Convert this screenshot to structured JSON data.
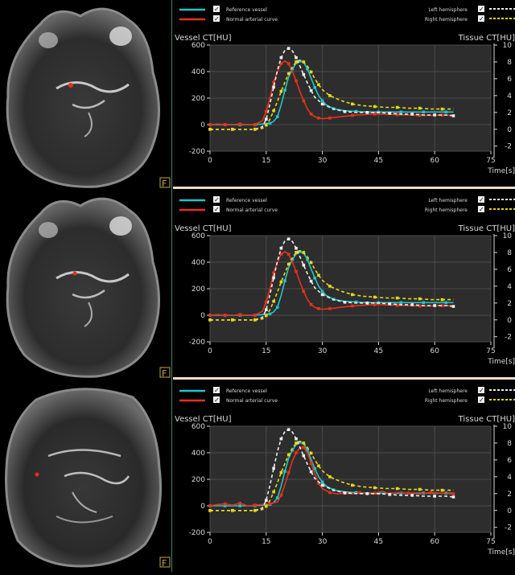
{
  "colors": {
    "reference": "#22c4c8",
    "normal_arterial": "#e8301e",
    "left_hemisphere": "#eeeeee",
    "right_hemisphere": "#e8d81c",
    "plot_bg": "#2d2d2d",
    "grid": "#4a4a4a",
    "text": "#d8d8d8"
  },
  "left_panel": {
    "frame_marker": "F"
  },
  "legend": {
    "reference_vessel": "Reference vessel",
    "normal_arterial_curve": "Normal arterial curve",
    "left_hemisphere": "Left hemisphere",
    "right_hemisphere": "Right hemisphere"
  },
  "chart_data": [
    {
      "type": "line",
      "y_left_label": "Vessel CT[HU]",
      "y_right_label": "Tissue CT[HU]",
      "x_label": "Time[s]",
      "x_ticks": [
        0,
        15,
        30,
        45,
        60,
        75
      ],
      "y_left_ticks": [
        600,
        400,
        200,
        0,
        -200
      ],
      "y_right_ticks": [
        10,
        8,
        6,
        4,
        2,
        0,
        -2
      ],
      "xlim": [
        0,
        75
      ],
      "ylim_left": [
        -200,
        600
      ],
      "ylim_right": [
        -2.6,
        10
      ],
      "series": [
        {
          "name": "Reference vessel",
          "axis": "left",
          "x": [
            0,
            2,
            4,
            6,
            8,
            10,
            12,
            14,
            16,
            17,
            18,
            19,
            20,
            21,
            22,
            23,
            24,
            25,
            26,
            27,
            28,
            29,
            30,
            31,
            33,
            36,
            39,
            42,
            45,
            48,
            51,
            54,
            57,
            60,
            63,
            65
          ],
          "y": [
            0,
            0,
            0,
            0,
            0,
            0,
            0,
            5,
            10,
            25,
            60,
            150,
            260,
            360,
            420,
            460,
            480,
            470,
            420,
            350,
            280,
            220,
            180,
            150,
            120,
            105,
            100,
            95,
            95,
            95,
            95,
            95,
            95,
            95,
            95,
            95
          ]
        },
        {
          "name": "Normal arterial curve",
          "axis": "left",
          "x": [
            0,
            2,
            4,
            6,
            8,
            10,
            12,
            14,
            15,
            16,
            17,
            18,
            19,
            20,
            21,
            22,
            23,
            24,
            25,
            26,
            27,
            28,
            29,
            30,
            32,
            35,
            38,
            41,
            44,
            47,
            50,
            53,
            56,
            59,
            62,
            65
          ],
          "y": [
            0,
            5,
            0,
            0,
            5,
            0,
            0,
            30,
            100,
            200,
            320,
            400,
            460,
            480,
            460,
            400,
            330,
            250,
            180,
            120,
            80,
            60,
            50,
            45,
            50,
            60,
            70,
            75,
            80,
            78,
            75,
            72,
            70,
            70,
            72,
            70
          ]
        },
        {
          "name": "Left hemisphere",
          "axis": "right",
          "x": [
            0,
            3,
            6,
            9,
            12,
            14,
            15,
            16,
            17,
            18,
            19,
            20,
            21,
            22,
            23,
            24,
            25,
            26,
            27,
            28,
            30,
            33,
            36,
            39,
            42,
            45,
            48,
            51,
            54,
            57,
            60,
            63,
            65
          ],
          "y": [
            0,
            0,
            0,
            0,
            0,
            0.3,
            1.2,
            3,
            5,
            7,
            8.5,
            9.4,
            9.6,
            9.3,
            8.5,
            7.5,
            6.5,
            5.5,
            4.6,
            3.8,
            3,
            2.4,
            2.1,
            2,
            2,
            2,
            1.9,
            1.8,
            1.8,
            1.7,
            1.7,
            1.7,
            1.6
          ]
        },
        {
          "name": "Right hemisphere",
          "axis": "right",
          "x": [
            0,
            3,
            6,
            9,
            12,
            14,
            15,
            16,
            17,
            18,
            19,
            20,
            21,
            22,
            23,
            24,
            25,
            26,
            27,
            28,
            29,
            30,
            32,
            35,
            38,
            41,
            44,
            47,
            50,
            53,
            56,
            59,
            62,
            65
          ],
          "y": [
            0,
            0,
            0,
            0,
            0,
            0.1,
            0.5,
            1.2,
            2.2,
            3.3,
            4.5,
            5.6,
            6.6,
            7.4,
            8,
            8.2,
            8,
            7.5,
            6.8,
            6,
            5.3,
            4.7,
            4,
            3.4,
            3,
            2.8,
            2.7,
            2.6,
            2.6,
            2.5,
            2.5,
            2.4,
            2.4,
            2.4
          ]
        }
      ]
    },
    {
      "type": "line",
      "y_left_label": "Vessel CT[HU]",
      "y_right_label": "Tissue CT[HU]",
      "x_label": "Time[s]",
      "x_ticks": [
        0,
        15,
        30,
        45,
        60,
        75
      ],
      "y_left_ticks": [
        600,
        400,
        200,
        0,
        -200
      ],
      "y_right_ticks": [
        10,
        8,
        6,
        4,
        2,
        0,
        -2
      ],
      "xlim": [
        0,
        75
      ],
      "ylim_left": [
        -200,
        600
      ],
      "ylim_right": [
        -2.6,
        10
      ],
      "series": [
        {
          "name": "Reference vessel",
          "axis": "left",
          "x": [
            0,
            2,
            4,
            6,
            8,
            10,
            12,
            14,
            16,
            17,
            18,
            19,
            20,
            21,
            22,
            23,
            24,
            25,
            26,
            27,
            28,
            29,
            30,
            31,
            33,
            36,
            39,
            42,
            45,
            48,
            51,
            54,
            57,
            60,
            63,
            65
          ],
          "y": [
            0,
            0,
            0,
            0,
            0,
            0,
            0,
            5,
            10,
            25,
            60,
            150,
            260,
            360,
            420,
            460,
            480,
            470,
            420,
            350,
            280,
            220,
            180,
            150,
            120,
            105,
            100,
            95,
            95,
            95,
            95,
            95,
            95,
            95,
            95,
            95
          ]
        },
        {
          "name": "Normal arterial curve",
          "axis": "left",
          "x": [
            0,
            2,
            4,
            6,
            8,
            10,
            12,
            14,
            15,
            16,
            17,
            18,
            19,
            20,
            21,
            22,
            23,
            24,
            25,
            26,
            27,
            28,
            29,
            30,
            32,
            35,
            38,
            41,
            44,
            47,
            50,
            53,
            56,
            59,
            62,
            65
          ],
          "y": [
            0,
            5,
            0,
            0,
            5,
            0,
            0,
            30,
            100,
            200,
            320,
            400,
            460,
            480,
            460,
            400,
            330,
            250,
            180,
            120,
            80,
            60,
            50,
            45,
            50,
            60,
            70,
            75,
            80,
            78,
            75,
            72,
            70,
            70,
            72,
            70
          ]
        },
        {
          "name": "Left hemisphere",
          "axis": "right",
          "x": [
            0,
            3,
            6,
            9,
            12,
            14,
            15,
            16,
            17,
            18,
            19,
            20,
            21,
            22,
            23,
            24,
            25,
            26,
            27,
            28,
            30,
            33,
            36,
            39,
            42,
            45,
            48,
            51,
            54,
            57,
            60,
            63,
            65
          ],
          "y": [
            0,
            0,
            0,
            0,
            0,
            0.3,
            1.2,
            3,
            5,
            7,
            8.5,
            9.4,
            9.6,
            9.3,
            8.5,
            7.5,
            6.5,
            5.5,
            4.6,
            3.8,
            3,
            2.4,
            2.1,
            2,
            2,
            2,
            1.9,
            1.8,
            1.8,
            1.7,
            1.7,
            1.7,
            1.6
          ]
        },
        {
          "name": "Right hemisphere",
          "axis": "right",
          "x": [
            0,
            3,
            6,
            9,
            12,
            14,
            15,
            16,
            17,
            18,
            19,
            20,
            21,
            22,
            23,
            24,
            25,
            26,
            27,
            28,
            29,
            30,
            32,
            35,
            38,
            41,
            44,
            47,
            50,
            53,
            56,
            59,
            62,
            65
          ],
          "y": [
            0,
            0,
            0,
            0,
            0,
            0.1,
            0.5,
            1.2,
            2.2,
            3.3,
            4.5,
            5.6,
            6.6,
            7.4,
            8,
            8.2,
            8,
            7.5,
            6.8,
            6,
            5.3,
            4.7,
            4,
            3.4,
            3,
            2.8,
            2.7,
            2.6,
            2.6,
            2.5,
            2.5,
            2.4,
            2.4,
            2.4
          ]
        }
      ]
    },
    {
      "type": "line",
      "y_left_label": "Vessel CT[HU]",
      "y_right_label": "Tissue CT[HU]",
      "x_label": "Time[s]",
      "x_ticks": [
        0,
        15,
        30,
        45,
        60,
        75
      ],
      "y_left_ticks": [
        600,
        400,
        200,
        0,
        -200
      ],
      "y_right_ticks": [
        10,
        8,
        6,
        4,
        2,
        0,
        -2
      ],
      "xlim": [
        0,
        75
      ],
      "ylim_left": [
        -200,
        600
      ],
      "ylim_right": [
        -2.6,
        10
      ],
      "series": [
        {
          "name": "Reference vessel",
          "axis": "left",
          "x": [
            0,
            2,
            4,
            6,
            8,
            10,
            12,
            14,
            16,
            17,
            18,
            19,
            20,
            21,
            22,
            23,
            24,
            25,
            26,
            27,
            28,
            29,
            30,
            31,
            33,
            36,
            39,
            42,
            45,
            48,
            51,
            54,
            57,
            60,
            63,
            65
          ],
          "y": [
            0,
            0,
            0,
            0,
            0,
            0,
            0,
            5,
            10,
            25,
            60,
            150,
            260,
            360,
            420,
            460,
            480,
            470,
            420,
            350,
            280,
            220,
            180,
            150,
            120,
            105,
            100,
            95,
            95,
            95,
            95,
            95,
            95,
            95,
            95,
            95
          ]
        },
        {
          "name": "Normal arterial curve",
          "axis": "left",
          "x": [
            0,
            2,
            4,
            6,
            8,
            10,
            12,
            14,
            16,
            18,
            19,
            20,
            21,
            22,
            23,
            24,
            25,
            26,
            27,
            28,
            29,
            30,
            32,
            34,
            36,
            38,
            40,
            42,
            44,
            46,
            48,
            50,
            53,
            56,
            59,
            62,
            65
          ],
          "y": [
            0,
            10,
            15,
            5,
            20,
            0,
            5,
            10,
            15,
            30,
            80,
            160,
            250,
            340,
            400,
            440,
            440,
            400,
            320,
            240,
            170,
            130,
            100,
            90,
            95,
            90,
            100,
            90,
            95,
            110,
            90,
            100,
            95,
            90,
            100,
            95,
            90
          ]
        },
        {
          "name": "Left hemisphere",
          "axis": "right",
          "x": [
            0,
            3,
            6,
            9,
            12,
            14,
            15,
            16,
            17,
            18,
            19,
            20,
            21,
            22,
            23,
            24,
            25,
            26,
            27,
            28,
            30,
            33,
            36,
            39,
            42,
            45,
            48,
            51,
            54,
            57,
            60,
            63,
            65
          ],
          "y": [
            0,
            0,
            0,
            0,
            0,
            0.3,
            1.2,
            3,
            5,
            7,
            8.5,
            9.4,
            9.6,
            9.3,
            8.5,
            7.5,
            6.5,
            5.5,
            4.6,
            3.8,
            3,
            2.4,
            2.1,
            2,
            2,
            2,
            1.9,
            1.8,
            1.8,
            1.7,
            1.7,
            1.7,
            1.6
          ]
        },
        {
          "name": "Right hemisphere",
          "axis": "right",
          "x": [
            0,
            3,
            6,
            9,
            12,
            14,
            15,
            16,
            17,
            18,
            19,
            20,
            21,
            22,
            23,
            24,
            25,
            26,
            27,
            28,
            29,
            30,
            32,
            35,
            38,
            41,
            44,
            47,
            50,
            53,
            56,
            59,
            62,
            65
          ],
          "y": [
            0,
            0,
            0,
            0,
            0,
            0.1,
            0.5,
            1.2,
            2.2,
            3.3,
            4.5,
            5.6,
            6.6,
            7.4,
            8,
            8.2,
            8,
            7.5,
            6.8,
            6,
            5.3,
            4.7,
            4,
            3.4,
            3,
            2.8,
            2.7,
            2.6,
            2.6,
            2.5,
            2.5,
            2.4,
            2.4,
            2.4
          ]
        }
      ]
    }
  ]
}
